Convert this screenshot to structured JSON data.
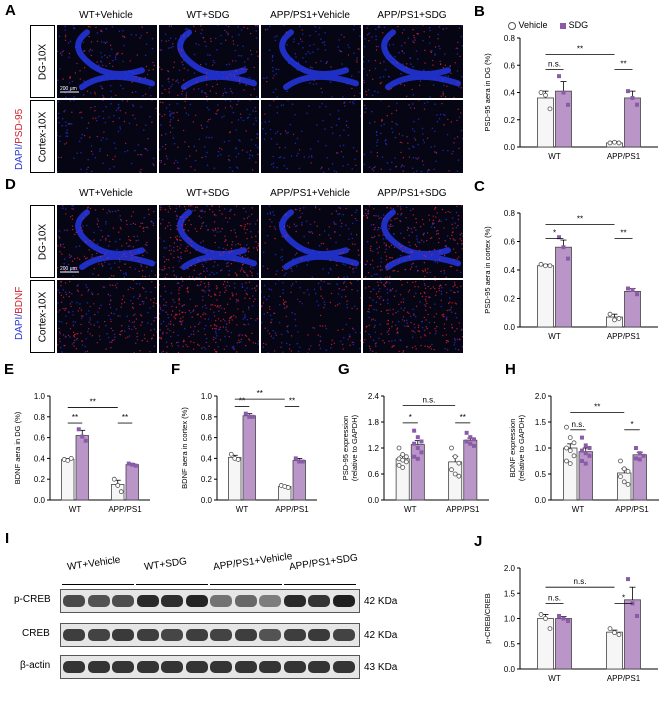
{
  "colors": {
    "vehicle": "#ffffff",
    "sdg": "#b995c8",
    "sdg_point": "#8a5ba6",
    "stain_blue": "#2233d6",
    "stain_red": "#d0202a"
  },
  "panels": {
    "A": {
      "letter": "A",
      "columns": [
        "WT+Vehicle",
        "WT+SDG",
        "APP/PS1+Vehicle",
        "APP/PS1+SDG"
      ],
      "rows": [
        "DG-10X",
        "Cortex-10X"
      ],
      "stain_dapi": "DAPI/",
      "stain_marker": "PSD-95",
      "scalebar": "200 μm"
    },
    "D": {
      "letter": "D",
      "columns": [
        "WT+Vehicle",
        "WT+SDG",
        "APP/PS1+Vehicle",
        "APP/PS1+SDG"
      ],
      "rows": [
        "DG-10X",
        "Cortex-10X"
      ],
      "stain_dapi": "DAPI/",
      "stain_marker": "BDNF",
      "scalebar": "200 μm"
    },
    "I": {
      "letter": "I",
      "groups": [
        "WT+Vehicle",
        "WT+SDG",
        "APP/PS1+Vehicle",
        "APP/PS1+SDG"
      ],
      "bands": [
        {
          "name": "p-CREB",
          "size": "42 KDa"
        },
        {
          "name": "CREB",
          "size": "42 KDa"
        },
        {
          "name": "β-actin",
          "size": "43 KDa"
        }
      ]
    }
  },
  "legend": {
    "vehicle": "Vehicle",
    "sdg": "SDG"
  },
  "chart_data": [
    {
      "id": "B",
      "letter": "B",
      "type": "bar",
      "categories": [
        "WT",
        "APP/PS1"
      ],
      "ylabel": "PSD-95 aera in DG (%)",
      "ylim": [
        0,
        0.8
      ],
      "yticks": [
        "0.0",
        "0.2",
        "0.4",
        "0.6",
        "0.8"
      ],
      "legend": true,
      "series": [
        {
          "name": "Vehicle",
          "values": [
            0.36,
            0.03
          ],
          "errors": [
            0.05,
            0.01
          ],
          "points": [
            [
              0.4,
              0.38,
              0.28
            ],
            [
              0.03,
              0.035,
              0.03
            ]
          ]
        },
        {
          "name": "SDG",
          "values": [
            0.41,
            0.36
          ],
          "errors": [
            0.07,
            0.05
          ],
          "points": [
            [
              0.52,
              0.4,
              0.31
            ],
            [
              0.41,
              0.36,
              0.31
            ]
          ]
        }
      ],
      "brackets": [
        {
          "from": [
            0,
            0
          ],
          "to": [
            0,
            1
          ],
          "y": 0.57,
          "label": "n.s."
        },
        {
          "from": [
            1,
            0
          ],
          "to": [
            1,
            1
          ],
          "y": 0.57,
          "label": "**"
        },
        {
          "from": [
            0,
            0
          ],
          "to": [
            1,
            0
          ],
          "y": 0.68,
          "label": "**"
        }
      ]
    },
    {
      "id": "C",
      "letter": "C",
      "type": "bar",
      "categories": [
        "WT",
        "APP/PS1"
      ],
      "ylabel": "PSD-95 aera in cortex (%)",
      "ylim": [
        0,
        0.8
      ],
      "yticks": [
        "0.0",
        "0.2",
        "0.4",
        "0.6",
        "0.8"
      ],
      "series": [
        {
          "name": "Vehicle",
          "values": [
            0.43,
            0.07
          ],
          "errors": [
            0.01,
            0.02
          ],
          "points": [
            [
              0.44,
              0.43,
              0.43
            ],
            [
              0.09,
              0.05,
              0.06
            ]
          ]
        },
        {
          "name": "SDG",
          "values": [
            0.56,
            0.25
          ],
          "errors": [
            0.05,
            0.02
          ],
          "points": [
            [
              0.63,
              0.56,
              0.48
            ],
            [
              0.27,
              0.26,
              0.23
            ]
          ]
        }
      ],
      "brackets": [
        {
          "from": [
            0,
            0
          ],
          "to": [
            0,
            1
          ],
          "y": 0.62,
          "label": "*"
        },
        {
          "from": [
            1,
            0
          ],
          "to": [
            1,
            1
          ],
          "y": 0.62,
          "label": "**"
        },
        {
          "from": [
            0,
            0
          ],
          "to": [
            1,
            0
          ],
          "y": 0.72,
          "label": "**"
        }
      ]
    },
    {
      "id": "E",
      "letter": "E",
      "type": "bar",
      "categories": [
        "WT",
        "APP/PS1"
      ],
      "ylabel": "BDNF aera in DG (%)",
      "ylim": [
        0,
        1.0
      ],
      "yticks": [
        "0.0",
        "0.2",
        "0.4",
        "0.6",
        "0.8",
        "1.0"
      ],
      "series": [
        {
          "name": "Vehicle",
          "values": [
            0.39,
            0.15
          ],
          "errors": [
            0.01,
            0.04
          ],
          "points": [
            [
              0.39,
              0.38,
              0.4
            ],
            [
              0.2,
              0.14,
              0.08
            ]
          ]
        },
        {
          "name": "SDG",
          "values": [
            0.62,
            0.34
          ],
          "errors": [
            0.05,
            0.01
          ],
          "points": [
            [
              0.68,
              0.61,
              0.57
            ],
            [
              0.35,
              0.34,
              0.33
            ]
          ]
        }
      ],
      "brackets": [
        {
          "from": [
            0,
            0
          ],
          "to": [
            0,
            1
          ],
          "y": 0.74,
          "label": "**"
        },
        {
          "from": [
            1,
            0
          ],
          "to": [
            1,
            1
          ],
          "y": 0.74,
          "label": "**"
        },
        {
          "from": [
            0,
            0
          ],
          "to": [
            1,
            0
          ],
          "y": 0.89,
          "label": "**"
        }
      ]
    },
    {
      "id": "F",
      "letter": "F",
      "type": "bar",
      "categories": [
        "WT",
        "APP/PS1"
      ],
      "ylabel": "BDNF aera in cortex (%)",
      "ylim": [
        0,
        1.0
      ],
      "yticks": [
        "0.0",
        "0.2",
        "0.4",
        "0.6",
        "0.8",
        "1.0"
      ],
      "series": [
        {
          "name": "Vehicle",
          "values": [
            0.41,
            0.13
          ],
          "errors": [
            0.02,
            0.01
          ],
          "points": [
            [
              0.44,
              0.4,
              0.39
            ],
            [
              0.14,
              0.13,
              0.12
            ]
          ]
        },
        {
          "name": "SDG",
          "values": [
            0.81,
            0.38
          ],
          "errors": [
            0.02,
            0.02
          ],
          "points": [
            [
              0.83,
              0.8,
              0.8
            ],
            [
              0.4,
              0.37,
              0.37
            ]
          ]
        }
      ],
      "brackets": [
        {
          "from": [
            0,
            0
          ],
          "to": [
            0,
            1
          ],
          "y": 0.9,
          "label": "**"
        },
        {
          "from": [
            1,
            0
          ],
          "to": [
            1,
            1
          ],
          "y": 0.9,
          "label": "**"
        },
        {
          "from": [
            0,
            0
          ],
          "to": [
            1,
            0
          ],
          "y": 0.97,
          "label": "**"
        }
      ]
    },
    {
      "id": "G",
      "letter": "G",
      "type": "bar",
      "categories": [
        "WT",
        "APP/PS1"
      ],
      "ylabel": "PSD-95 expression\n(relative to GAPDH)",
      "ylim": [
        0,
        2.4
      ],
      "yticks": [
        "0.0",
        "0.6",
        "1.2",
        "1.8",
        "2.4"
      ],
      "series": [
        {
          "name": "Vehicle",
          "values": [
            0.95,
            0.88
          ],
          "errors": [
            0.08,
            0.13
          ],
          "points": [
            [
              1.2,
              1.05,
              1.0,
              0.95,
              0.92,
              0.88,
              0.8,
              0.75
            ],
            [
              1.2,
              1.0,
              0.85,
              0.7,
              0.6,
              0.55
            ]
          ]
        },
        {
          "name": "SDG",
          "values": [
            1.28,
            1.38
          ],
          "errors": [
            0.09,
            0.05
          ],
          "points": [
            [
              1.6,
              1.45,
              1.35,
              1.3,
              1.2,
              1.1,
              1.0,
              0.95
            ],
            [
              1.55,
              1.45,
              1.4,
              1.35,
              1.3,
              1.25
            ]
          ]
        }
      ],
      "brackets": [
        {
          "from": [
            0,
            0
          ],
          "to": [
            0,
            1
          ],
          "y": 1.78,
          "label": "*"
        },
        {
          "from": [
            1,
            0
          ],
          "to": [
            1,
            1
          ],
          "y": 1.78,
          "label": "**"
        },
        {
          "from": [
            0,
            0
          ],
          "to": [
            1,
            0
          ],
          "y": 2.18,
          "label": "n.s."
        }
      ]
    },
    {
      "id": "H",
      "letter": "H",
      "type": "bar",
      "categories": [
        "WT",
        "APP/PS1"
      ],
      "ylabel": "BDNF expression\n(relative to GAPDH)",
      "ylim": [
        0,
        2.0
      ],
      "yticks": [
        "0.0",
        "0.5",
        "1.0",
        "1.5",
        "2.0"
      ],
      "series": [
        {
          "name": "Vehicle",
          "values": [
            1.0,
            0.52
          ],
          "errors": [
            0.08,
            0.08
          ],
          "points": [
            [
              1.4,
              1.2,
              1.1,
              1.0,
              0.95,
              0.85,
              0.75,
              0.7
            ],
            [
              0.75,
              0.6,
              0.55,
              0.45,
              0.35,
              0.3
            ]
          ]
        },
        {
          "name": "SDG",
          "values": [
            0.93,
            0.87
          ],
          "errors": [
            0.07,
            0.05
          ],
          "points": [
            [
              1.2,
              1.05,
              1.0,
              0.95,
              0.9,
              0.85,
              0.75,
              0.7
            ],
            [
              1.0,
              0.9,
              0.85,
              0.8,
              0.78
            ]
          ]
        }
      ],
      "brackets": [
        {
          "from": [
            0,
            0
          ],
          "to": [
            0,
            1
          ],
          "y": 1.35,
          "label": "n.s."
        },
        {
          "from": [
            1,
            0
          ],
          "to": [
            1,
            1
          ],
          "y": 1.35,
          "label": "*"
        },
        {
          "from": [
            0,
            0
          ],
          "to": [
            1,
            0
          ],
          "y": 1.68,
          "label": "**"
        }
      ]
    },
    {
      "id": "J",
      "letter": "J",
      "type": "bar",
      "categories": [
        "WT",
        "APP/PS1"
      ],
      "ylabel": "p-CREB/CREB",
      "ylim": [
        0,
        2.0
      ],
      "yticks": [
        "0.0",
        "0.5",
        "1.0",
        "1.5",
        "2.0"
      ],
      "series": [
        {
          "name": "Vehicle",
          "values": [
            1.0,
            0.73
          ],
          "errors": [
            0.08,
            0.04
          ],
          "points": [
            [
              1.08,
              1.0,
              0.8
            ],
            [
              0.8,
              0.72,
              0.68
            ]
          ]
        },
        {
          "name": "SDG",
          "values": [
            1.0,
            1.37
          ],
          "errors": [
            0.04,
            0.25
          ],
          "points": [
            [
              1.05,
              1.0,
              0.95
            ],
            [
              1.78,
              1.3,
              1.05
            ]
          ]
        }
      ],
      "brackets": [
        {
          "from": [
            0,
            0
          ],
          "to": [
            0,
            1
          ],
          "y": 1.3,
          "label": "n.s."
        },
        {
          "from": [
            1,
            0
          ],
          "to": [
            1,
            1
          ],
          "y": 1.3,
          "label": "*"
        },
        {
          "from": [
            0,
            0
          ],
          "to": [
            1,
            0
          ],
          "y": 1.62,
          "label": "n.s."
        }
      ]
    }
  ]
}
